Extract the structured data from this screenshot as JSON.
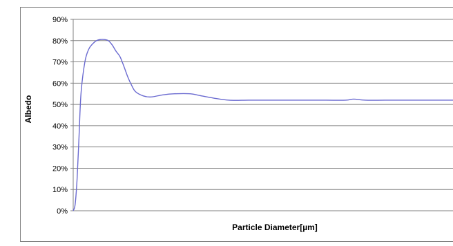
{
  "chart_data": {
    "type": "line",
    "title": "",
    "xlabel": "Particle Diameter[µm]",
    "ylabel": "Albedo",
    "ylim": [
      0,
      90
    ],
    "y_ticks": [
      "0%",
      "10%",
      "20%",
      "30%",
      "40%",
      "50%",
      "60%",
      "70%",
      "80%",
      "90%"
    ],
    "y_tick_values": [
      0,
      10,
      20,
      30,
      40,
      50,
      60,
      70,
      80,
      90
    ],
    "x_tick_labels": [],
    "grid": true,
    "legend": "none",
    "series": [
      {
        "color": "#6a6ad0",
        "x": [
          0,
          0.5,
          1,
          1.5,
          2,
          3,
          4,
          5,
          6,
          7,
          8,
          9,
          10,
          11,
          12,
          13,
          14,
          15,
          16,
          18,
          20,
          23,
          26,
          30,
          33,
          36,
          40,
          45,
          50,
          55,
          60,
          65,
          70,
          72,
          75,
          80,
          85,
          90,
          100
        ],
        "y": [
          0,
          3,
          15,
          35,
          55,
          70,
          76,
          78.5,
          80,
          80.5,
          80.5,
          80,
          78,
          75,
          72.5,
          68,
          63,
          59,
          56,
          54,
          53.5,
          54.5,
          55,
          55,
          54,
          53,
          52,
          52,
          52,
          52,
          52,
          52,
          52,
          52.5,
          52,
          52,
          52,
          52,
          52
        ]
      }
    ]
  }
}
